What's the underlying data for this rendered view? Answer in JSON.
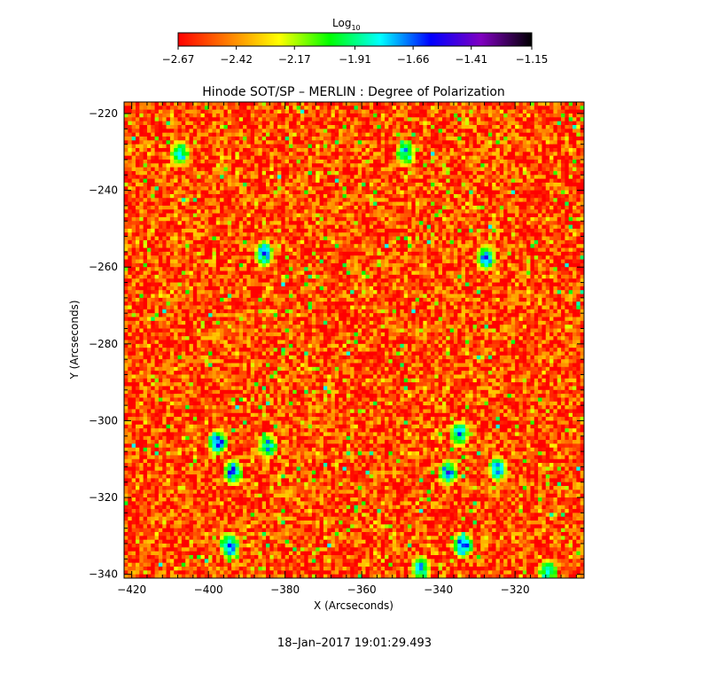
{
  "chart_data": {
    "type": "heatmap",
    "title": "Hinode SOT/SP – MERLIN : Degree of Polarization",
    "xlabel": "X (Arcseconds)",
    "ylabel": "Y (Arcseconds)",
    "xlim": [
      -422,
      -302
    ],
    "ylim": [
      -341,
      -217
    ],
    "x_ticks": [
      -420,
      -400,
      -380,
      -360,
      -340,
      -320
    ],
    "y_ticks": [
      -220,
      -240,
      -260,
      -280,
      -300,
      -320,
      -340
    ],
    "x_tick_labels": [
      "−420",
      "−400",
      "−380",
      "−360",
      "−340",
      "−320"
    ],
    "y_tick_labels": [
      "−220",
      "−240",
      "−260",
      "−280",
      "−300",
      "−320",
      "−340"
    ],
    "colorbar": {
      "label": "Log",
      "label_sub": "10",
      "range": [
        -2.67,
        -1.15
      ],
      "tick_values": [
        -2.67,
        -2.42,
        -2.17,
        -1.91,
        -1.66,
        -1.41,
        -1.15
      ],
      "tick_labels": [
        "−2.67",
        "−2.42",
        "−2.17",
        "−1.91",
        "−1.66",
        "−1.41",
        "−1.15"
      ],
      "colors": [
        "#ff0000",
        "#ff7f00",
        "#ffff00",
        "#00ff00",
        "#00ffff",
        "#0000ff",
        "#8000c0",
        "#000000"
      ]
    },
    "strong_polarization_patches": [
      {
        "x": -408,
        "y": -230,
        "level": -1.6
      },
      {
        "x": -386,
        "y": -256,
        "level": -1.5
      },
      {
        "x": -349,
        "y": -230,
        "level": -1.6
      },
      {
        "x": -328,
        "y": -257,
        "level": -1.5
      },
      {
        "x": -398,
        "y": -305,
        "level": -1.45
      },
      {
        "x": -394,
        "y": -313,
        "level": -1.45
      },
      {
        "x": -395,
        "y": -332,
        "level": -1.4
      },
      {
        "x": -385,
        "y": -306,
        "level": -1.6
      },
      {
        "x": -335,
        "y": -303,
        "level": -1.5
      },
      {
        "x": -338,
        "y": -313,
        "level": -1.5
      },
      {
        "x": -334,
        "y": -332,
        "level": -1.4
      },
      {
        "x": -325,
        "y": -312,
        "level": -1.55
      },
      {
        "x": -345,
        "y": -338,
        "level": -1.6
      },
      {
        "x": -312,
        "y": -339,
        "level": -1.6
      }
    ],
    "background_level": -2.55
  },
  "footer": {
    "timestamp": "18–Jan–2017 19:01:29.493"
  }
}
